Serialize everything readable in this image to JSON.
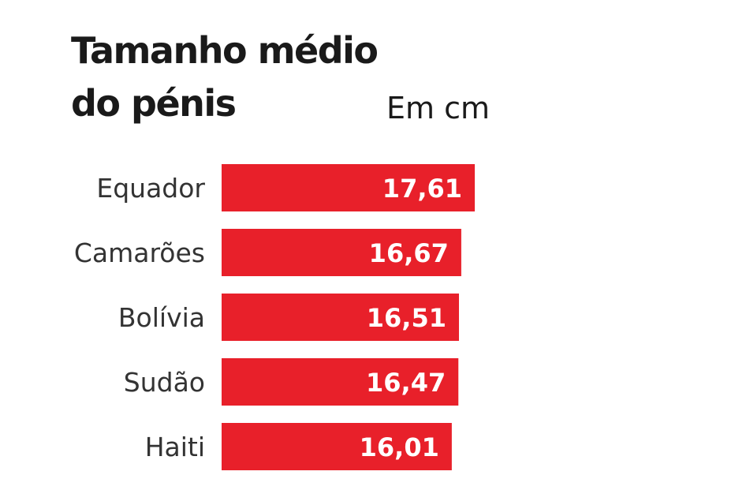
{
  "chart_data": {
    "type": "hbar",
    "title": [
      "Tamanho médio",
      "do pénis"
    ],
    "subtitle": "Em cm",
    "categories": [
      "Equador",
      "Camarões",
      "Bolívia",
      "Sudão",
      "Haiti"
    ],
    "values": [
      17.61,
      16.67,
      16.51,
      16.47,
      16.01
    ],
    "value_labels": [
      "17,61",
      "16,67",
      "16,51",
      "16,47",
      "16,01"
    ],
    "color": "#e8202a"
  }
}
